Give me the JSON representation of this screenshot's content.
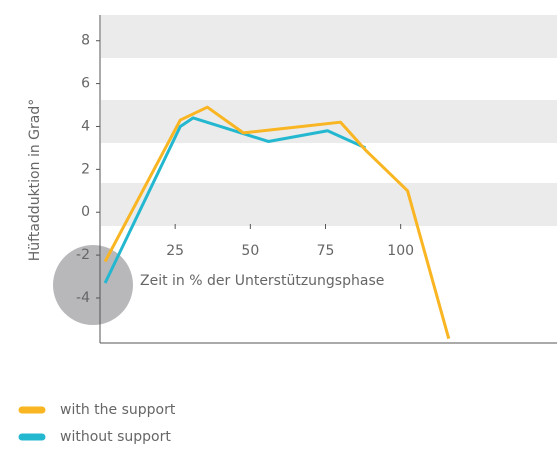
{
  "chart_data": {
    "type": "line",
    "ylabel": "Hüftadduktion in Grad°",
    "xlabel": "Zeit in % der Unterstützungsphase",
    "xlim": [
      0,
      152
    ],
    "ylim": [
      -6.1,
      9.2
    ],
    "xticks": [
      25,
      50,
      75,
      100
    ],
    "yticks": [
      -4,
      -2,
      0,
      2,
      4,
      6,
      8
    ],
    "series": [
      {
        "name": "with the support",
        "color": "#f9b522",
        "x": [
          1.7,
          26.7,
          35.7,
          47.7,
          80,
          88.3,
          102.3,
          116
        ],
        "values": [
          -2.3,
          4.3,
          4.9,
          3.7,
          4.2,
          2.9,
          1.0,
          -5.9
        ]
      },
      {
        "name": "without support",
        "color": "#23b8d0",
        "x": [
          1.7,
          26.7,
          31,
          56,
          75.7,
          88.3
        ],
        "values": [
          -3.3,
          4.0,
          4.4,
          3.3,
          3.8,
          3.0
        ]
      }
    ]
  }
}
